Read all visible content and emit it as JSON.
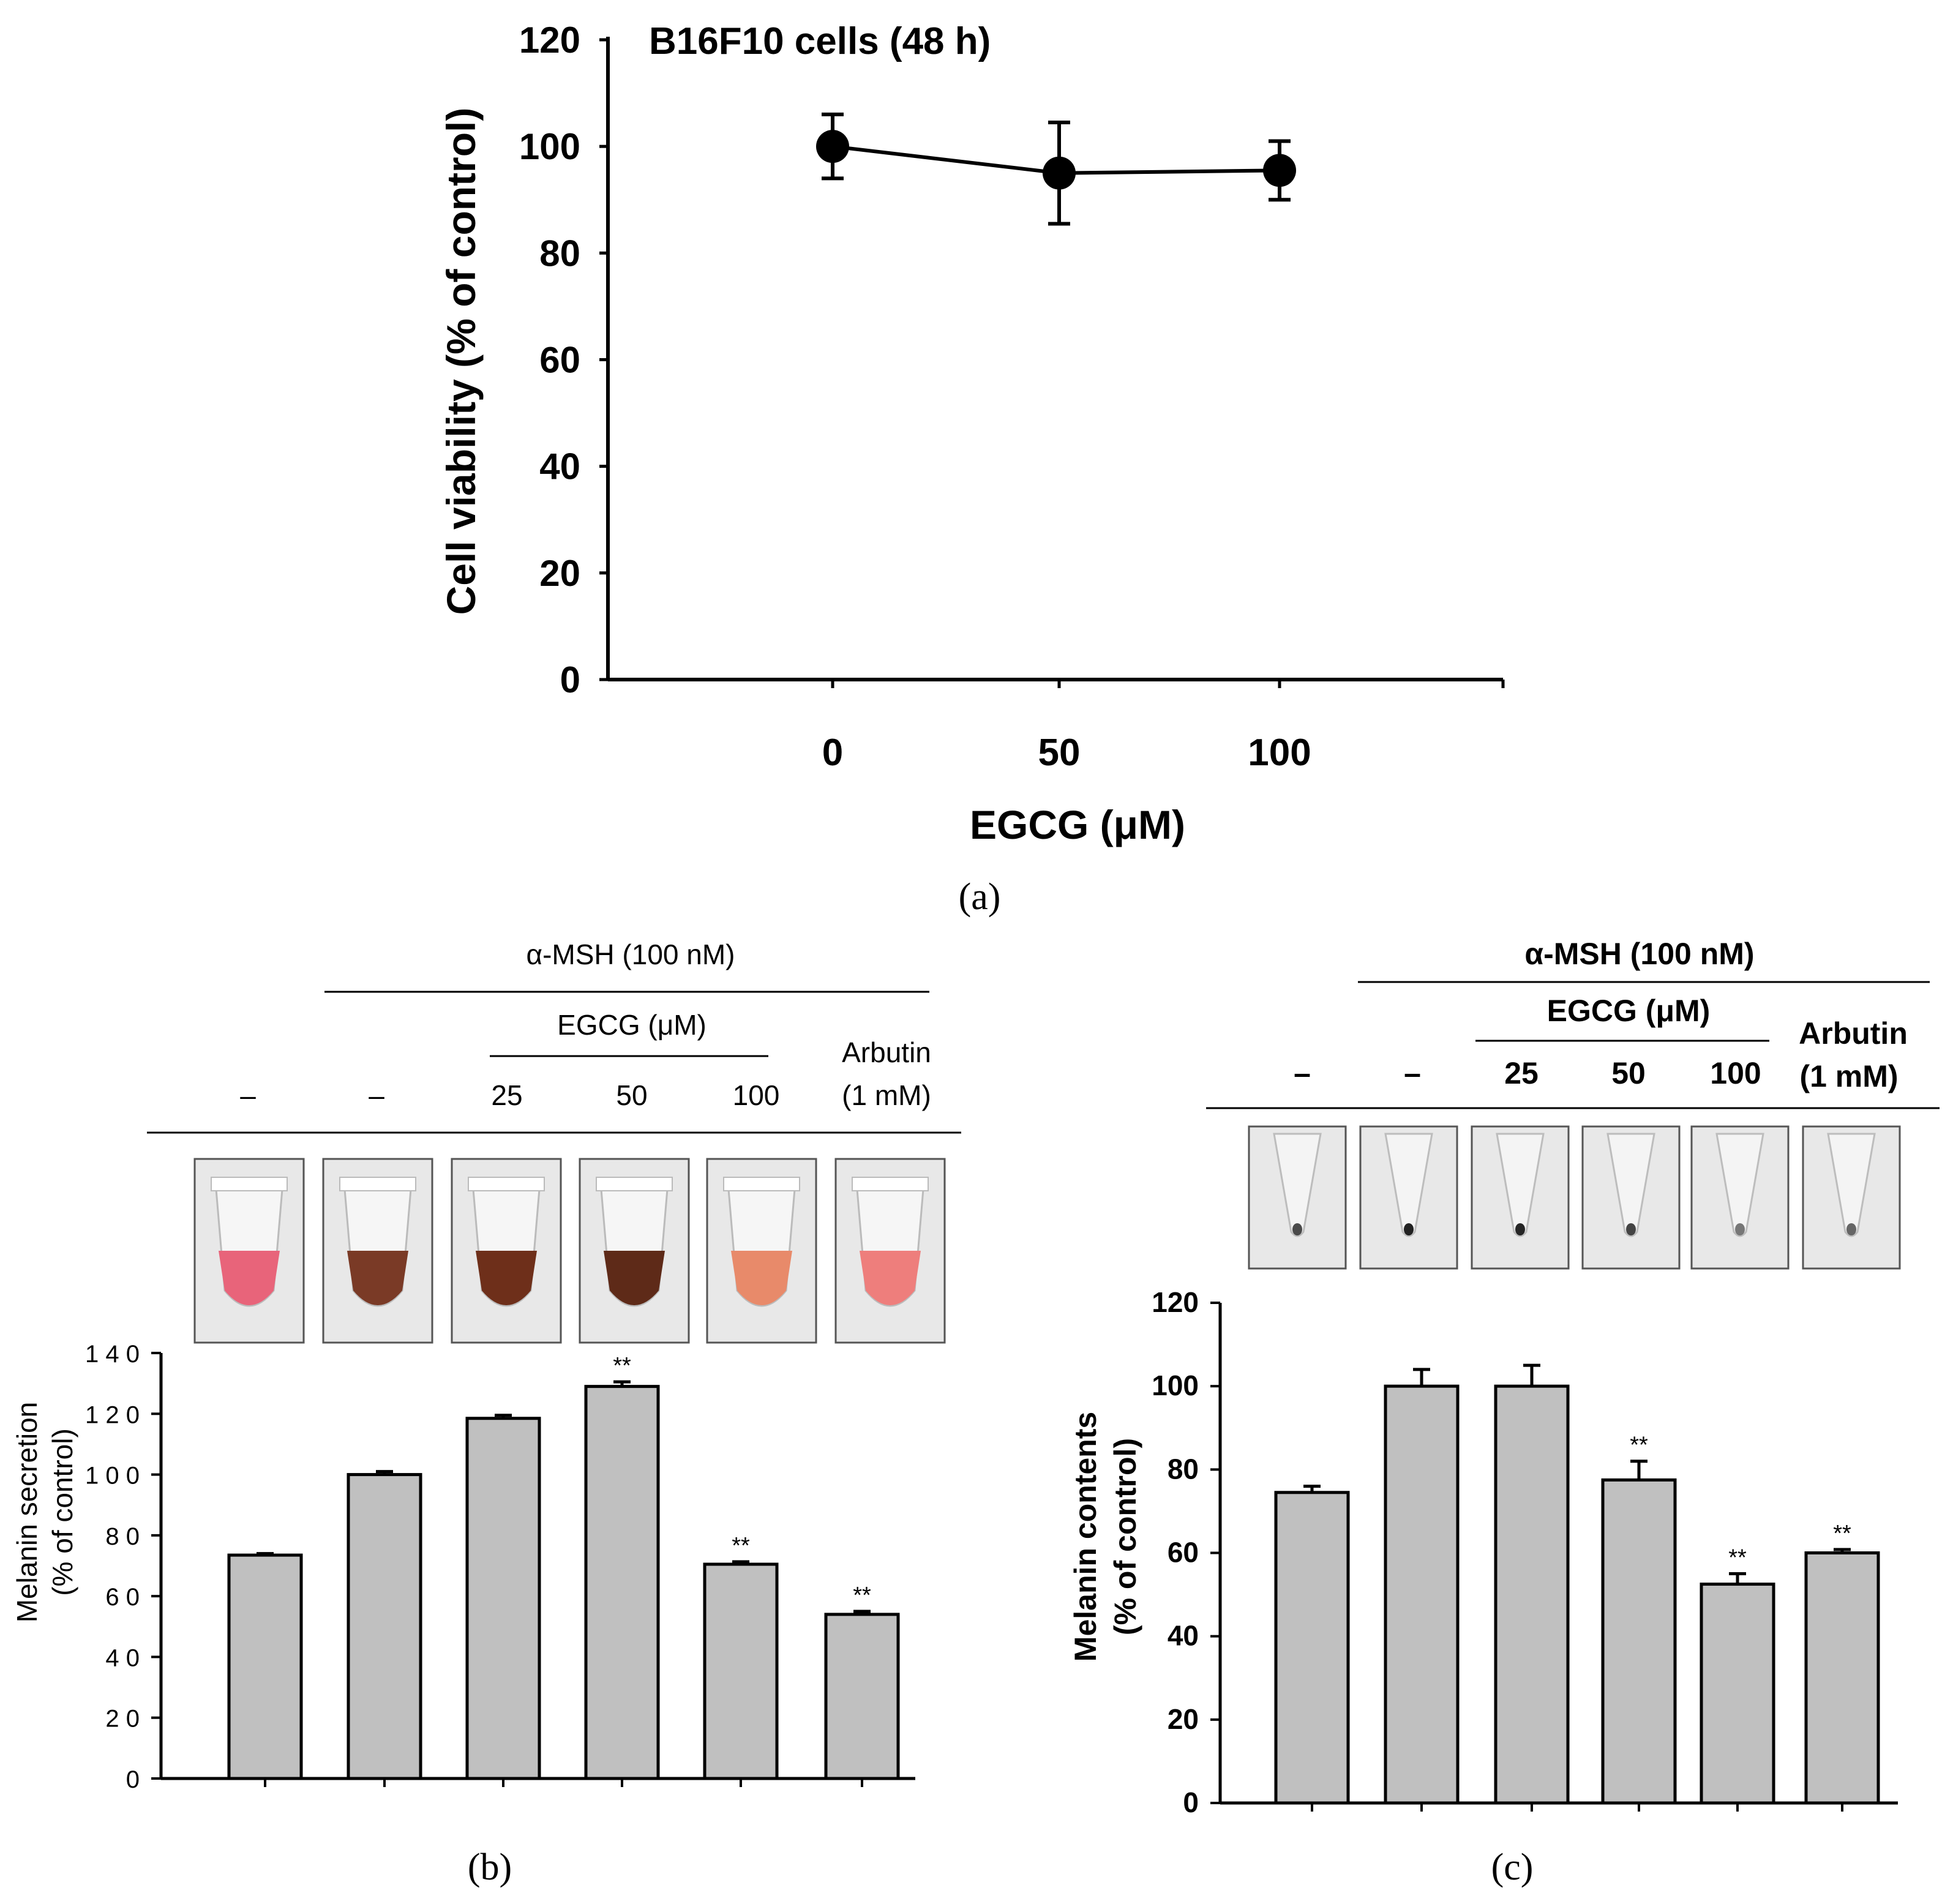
{
  "figure": {
    "panel_a_label": "(a)",
    "panel_b_label": "(b)",
    "panel_c_label": "(c)"
  },
  "chart_data": [
    {
      "panel": "a",
      "type": "line",
      "title": "B16F10 cells (48 h)",
      "xlabel": "EGCG (μM)",
      "ylabel": "Cell viability (% of control)",
      "x": [
        "0",
        "50",
        "100"
      ],
      "y": [
        100,
        95,
        95.5
      ],
      "error": [
        6,
        9.5,
        5.5
      ],
      "ylim": [
        0,
        120
      ],
      "yticks": [
        "0",
        "20",
        "40",
        "60",
        "80",
        "100",
        "120"
      ],
      "grid": false
    },
    {
      "panel": "b",
      "type": "bar",
      "ylabel_line1": "Melanin secretion",
      "ylabel_line2": "(% of control)",
      "header": "α-MSH (100 nM)",
      "subheader": "EGCG (μM)",
      "categories": [
        "–",
        "–",
        "25",
        "50",
        "100",
        "Arbutin|(1 mM)"
      ],
      "arbutin_line1": "Arbutin",
      "arbutin_line2": "(1 mM)",
      "values": [
        73.5,
        100,
        118.5,
        129,
        70.5,
        54
      ],
      "error": [
        0.5,
        1,
        1,
        1.5,
        0.8,
        1
      ],
      "significance": [
        "",
        "",
        "",
        "**",
        "**",
        "**"
      ],
      "ylim": [
        0,
        140
      ],
      "yticks": [
        "0",
        "2 0",
        "4 0",
        "6 0",
        "8 0",
        "1 0 0",
        "1 2 0",
        "1 4 0"
      ],
      "tube_colors": [
        "#e8647a",
        "#7a3a26",
        "#6e2f1a",
        "#5e2a18",
        "#e88a6a",
        "#ee7e7c"
      ],
      "grid": false
    },
    {
      "panel": "c",
      "type": "bar",
      "ylabel_line1": "Melanin contents",
      "ylabel_line2": "(% of control)",
      "header": "α-MSH (100 nM)",
      "subheader": "EGCG (μM)",
      "categories": [
        "–",
        "–",
        "25",
        "50",
        "100",
        "Arbutin|(1 mM)"
      ],
      "arbutin_line1": "Arbutin",
      "arbutin_line2": "(1 mM)",
      "values": [
        74.5,
        100,
        100,
        77.5,
        52.5,
        60
      ],
      "error": [
        1.5,
        4,
        5,
        4.5,
        2.5,
        0.8
      ],
      "significance": [
        "",
        "",
        "",
        "**",
        "**",
        "**"
      ],
      "ylim": [
        0,
        120
      ],
      "yticks": [
        "0",
        "20",
        "40",
        "60",
        "80",
        "100",
        "120"
      ],
      "pellet_colors": [
        "#4a4a4a",
        "#222222",
        "#262626",
        "#444444",
        "#777777",
        "#666666"
      ],
      "grid": false
    }
  ],
  "colors": {
    "bar_fill": "#c0c0c0",
    "axis": "#000000",
    "tube_background": "#e8e8e8"
  }
}
